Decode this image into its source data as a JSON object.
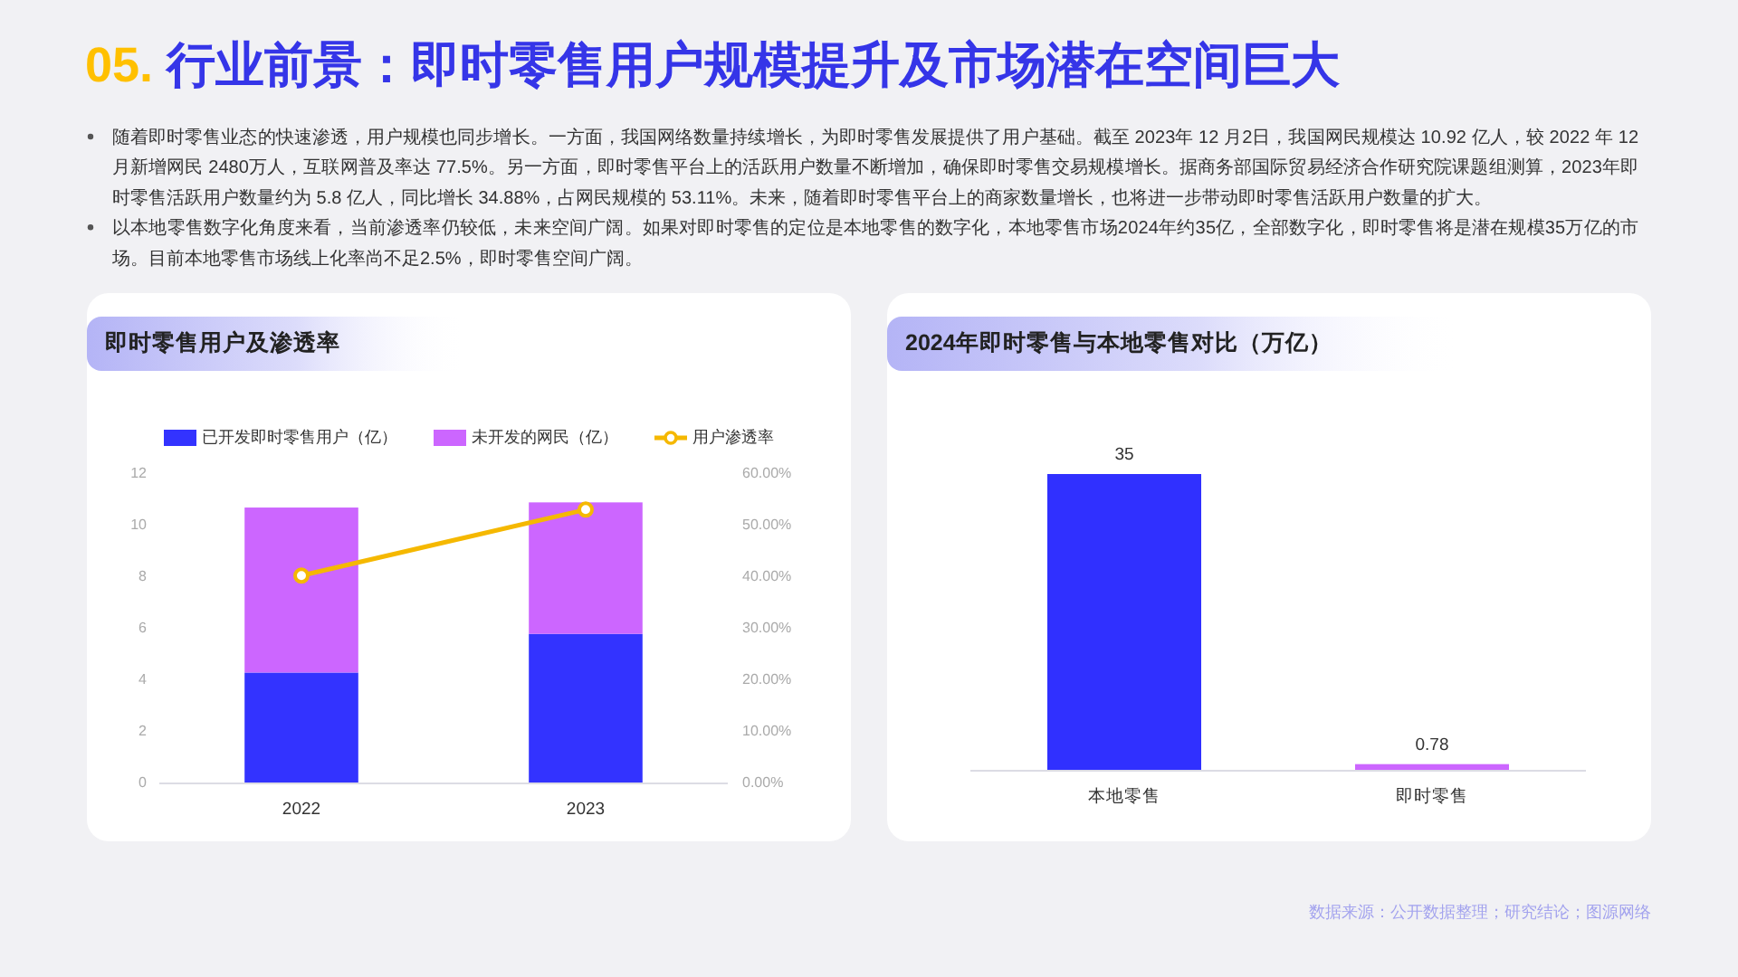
{
  "chart_data": [
    {
      "type": "other",
      "title": "05. 行业前景：即时零售用户规模提升及市场潜在空间巨大",
      "annotations": [
        "随着即时零售业态的快速渗透，用户规模也同步增长。一方面，我国网络数量持续增长，为即时零售发展提供了用户基础。截至 2023年 12 月2日，我国网民规模达 10.92 亿人，较 2022 年 12 月新增网民 2480万人，互联网普及率达 77.5%。另一方面，即时零售平台上的活跃用户数量不断增加，确保即时零售交易规模增长。据商务部国际贸易经济合作研究院课题组测算，2023年即时零售活跃用户数量约为 5.8 亿人，同比增长 34.88%，占网民规模的 53.11%。未来，随着即时零售平台上的商家数量增长，也将进一步带动即时零售活跃用户数量的扩大。",
        "以本地零售数字化角度来看，当前渗透率仍较低，未来空间广阔。如果对即时零售的定位是本地零售的数字化，本地零售市场2024年约35亿，全部数字化，即时零售将是潜在规模35万亿的市场。目前本地零售市场线上化率尚不足2.5%，即时零售空间广阔。"
      ]
    },
    {
      "type": "bar",
      "title": "即时零售用户及渗透率",
      "categories": [
        "2022",
        "2023"
      ],
      "stacked": true,
      "legend": "top",
      "marker": "circle",
      "series": [
        {
          "name": "已开发即时零售用户（亿）",
          "color": "#3333ff",
          "values": [
            4.3,
            5.8
          ]
        },
        {
          "name": "未开发的网民（亿）",
          "color": "#cc66ff",
          "values": [
            6.4,
            5.1
          ]
        },
        {
          "name": "用户渗透率",
          "type": "line",
          "axis": "y2",
          "color": "#f5b800",
          "values": [
            40.3,
            53.1
          ]
        }
      ],
      "ylim": [
        0,
        12
      ],
      "yticks": [
        0,
        2,
        4,
        6,
        8,
        10,
        12
      ],
      "y2lim": [
        0,
        60
      ],
      "y2ticks": [
        {
          "value": 0,
          "label": "0.00%"
        },
        {
          "value": 10,
          "label": "10.00%"
        },
        {
          "value": 20,
          "label": "20.00%"
        },
        {
          "value": 30,
          "label": "30.00%"
        },
        {
          "value": 40,
          "label": "40.00%"
        },
        {
          "value": 50,
          "label": "50.00%"
        },
        {
          "value": 60,
          "label": "60.00%"
        }
      ]
    },
    {
      "type": "bar",
      "title": "2024年即时零售与本地零售对比（万亿）",
      "categories": [
        "本地零售",
        "即时零售"
      ],
      "values": [
        35,
        0.78
      ],
      "colors": [
        "#3030ff",
        "#cc66ff"
      ],
      "data_labels": true,
      "annotations": [
        "数据来源：公开数据整理；研究结论；图源网络"
      ]
    }
  ]
}
